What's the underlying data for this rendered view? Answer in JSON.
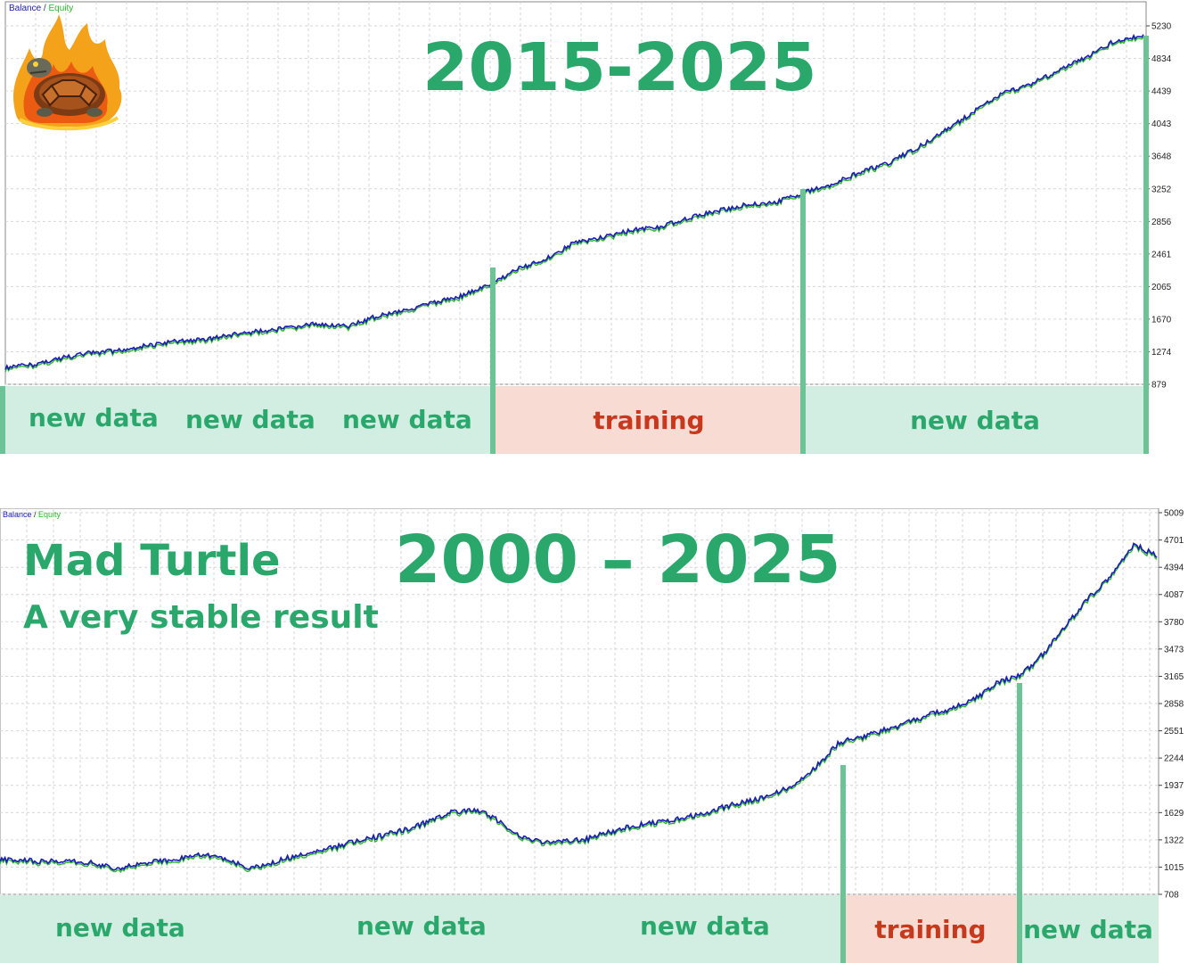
{
  "top": {
    "legend": {
      "balance": "Balance",
      "separator": " / ",
      "equity": "Equity"
    },
    "title": "2015-2025",
    "band_labels": [
      "new data",
      "new data",
      "new data",
      "training",
      "new data"
    ],
    "chart_data": {
      "type": "line",
      "title": "2015-2025",
      "y_ticks": [
        5230,
        4834,
        4439,
        4043,
        3648,
        3252,
        2856,
        2461,
        2065,
        1670,
        1274,
        879
      ],
      "ylim": [
        879,
        5230
      ],
      "grid": true,
      "series": [
        {
          "name": "Balance",
          "color": "#1b1bb5",
          "values": [
            1080,
            1120,
            1200,
            1260,
            1290,
            1350,
            1400,
            1420,
            1480,
            1530,
            1560,
            1620,
            1580,
            1700,
            1780,
            1860,
            1950,
            2080,
            2280,
            2400,
            2600,
            2660,
            2750,
            2790,
            2900,
            2980,
            3060,
            3080,
            3200,
            3300,
            3450,
            3560,
            3740,
            3950,
            4180,
            4400,
            4520,
            4680,
            4850,
            5050,
            5110
          ]
        },
        {
          "name": "Equity",
          "color": "#2fb52f"
        }
      ]
    }
  },
  "bottom": {
    "legend": {
      "balance": "Balance",
      "separator": " / ",
      "equity": "Equity"
    },
    "title": "2000 – 2025",
    "subtitle_1": "Mad Turtle",
    "subtitle_2": "A very stable result",
    "band_labels": [
      "new data",
      "new data",
      "new data",
      "training",
      "new data"
    ],
    "chart_data": {
      "type": "line",
      "title": "2000 – 2025",
      "y_ticks": [
        5009,
        4701,
        4394,
        4087,
        3780,
        3473,
        3165,
        2858,
        2551,
        2244,
        1937,
        1629,
        1322,
        1015,
        708
      ],
      "ylim": [
        708,
        5009
      ],
      "grid": true,
      "series": [
        {
          "name": "Balance",
          "color": "#1b1bb5",
          "values": [
            1100,
            1090,
            1080,
            1090,
            1060,
            1000,
            1040,
            1080,
            1120,
            1160,
            1090,
            1000,
            1070,
            1140,
            1200,
            1260,
            1320,
            1380,
            1440,
            1540,
            1640,
            1660,
            1540,
            1340,
            1300,
            1310,
            1340,
            1420,
            1480,
            1530,
            1560,
            1620,
            1700,
            1760,
            1820,
            1950,
            2150,
            2420,
            2480,
            2560,
            2640,
            2740,
            2800,
            2920,
            3100,
            3180,
            3420,
            3750,
            4050,
            4300,
            4650,
            4520
          ]
        },
        {
          "name": "Equity",
          "color": "#2fb52f"
        }
      ]
    }
  }
}
